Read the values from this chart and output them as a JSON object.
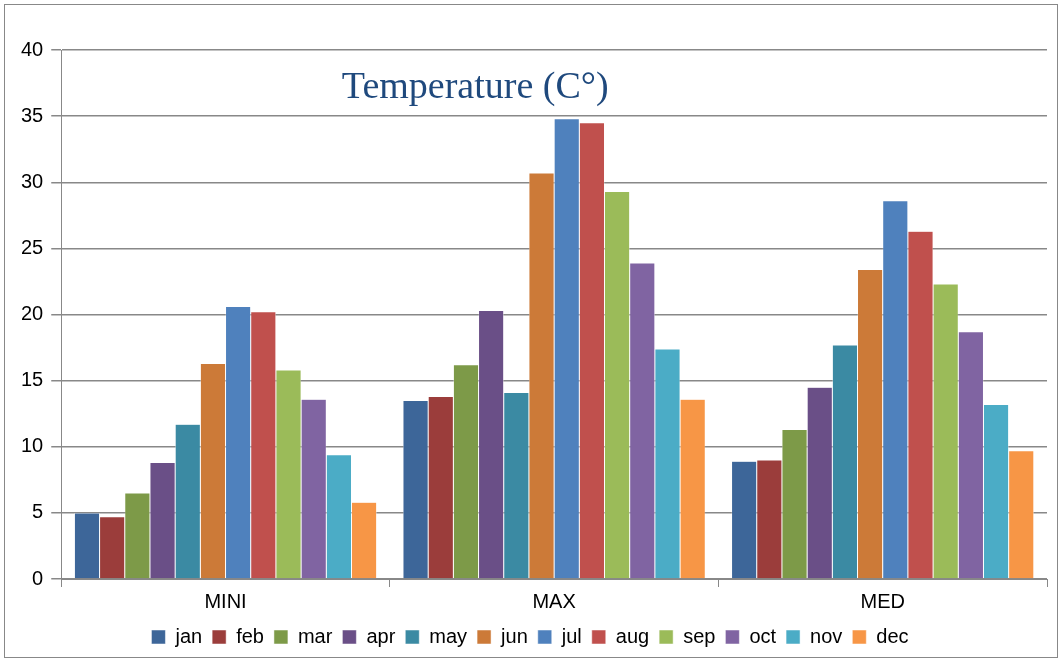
{
  "chart_data": {
    "type": "bar",
    "title": "Temperature (C°)",
    "categories": [
      "MINI",
      "MAX",
      "MED"
    ],
    "series": [
      {
        "name": "jan",
        "color": "#3d6699",
        "values": [
          5.0,
          13.5,
          8.9
        ]
      },
      {
        "name": "feb",
        "color": "#9b3d3b",
        "values": [
          4.7,
          13.8,
          9.0
        ]
      },
      {
        "name": "mar",
        "color": "#7d9a48",
        "values": [
          6.5,
          16.2,
          11.3
        ]
      },
      {
        "name": "apr",
        "color": "#6a4f87",
        "values": [
          8.8,
          20.3,
          14.5
        ]
      },
      {
        "name": "may",
        "color": "#3b8aa3",
        "values": [
          11.7,
          14.1,
          17.7
        ]
      },
      {
        "name": "jun",
        "color": "#cc7a38",
        "values": [
          16.3,
          30.7,
          23.4
        ]
      },
      {
        "name": "jul",
        "color": "#4f81bd",
        "values": [
          20.6,
          34.8,
          28.6
        ]
      },
      {
        "name": "aug",
        "color": "#c0504d",
        "values": [
          20.2,
          34.5,
          26.3
        ]
      },
      {
        "name": "sep",
        "color": "#9bbb59",
        "values": [
          15.8,
          29.3,
          22.3
        ]
      },
      {
        "name": "oct",
        "color": "#8064a2",
        "values": [
          13.6,
          23.9,
          18.7
        ]
      },
      {
        "name": "nov",
        "color": "#4bacc6",
        "values": [
          9.4,
          17.4,
          13.2
        ]
      },
      {
        "name": "dec",
        "color": "#f79646",
        "values": [
          5.8,
          13.6,
          9.7
        ]
      }
    ],
    "ylim": [
      0,
      40
    ],
    "yticks": [
      0,
      5,
      10,
      15,
      20,
      25,
      30,
      35,
      40
    ],
    "grid": "y",
    "legend": "bottom"
  }
}
